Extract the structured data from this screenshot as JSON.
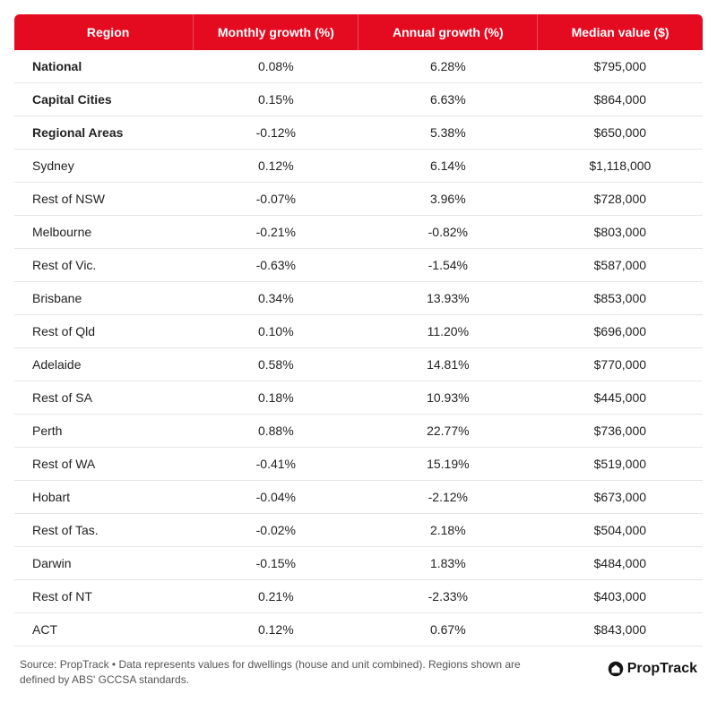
{
  "table": {
    "header_bg": "#e40b21",
    "header_fg": "#ffffff",
    "row_border": "#e6e6e6",
    "columns": [
      "Region",
      "Monthly growth (%)",
      "Annual growth (%)",
      "Median value ($)"
    ],
    "col_widths": [
      "26%",
      "24%",
      "26%",
      "24%"
    ],
    "rows": [
      {
        "bold": true,
        "cells": [
          "National",
          "0.08%",
          "6.28%",
          "$795,000"
        ]
      },
      {
        "bold": true,
        "cells": [
          "Capital Cities",
          "0.15%",
          "6.63%",
          "$864,000"
        ]
      },
      {
        "bold": true,
        "cells": [
          "Regional Areas",
          "-0.12%",
          "5.38%",
          "$650,000"
        ]
      },
      {
        "bold": false,
        "cells": [
          "Sydney",
          "0.12%",
          "6.14%",
          "$1,118,000"
        ]
      },
      {
        "bold": false,
        "cells": [
          "Rest of NSW",
          "-0.07%",
          "3.96%",
          "$728,000"
        ]
      },
      {
        "bold": false,
        "cells": [
          "Melbourne",
          "-0.21%",
          "-0.82%",
          "$803,000"
        ]
      },
      {
        "bold": false,
        "cells": [
          "Rest of Vic.",
          "-0.63%",
          "-1.54%",
          "$587,000"
        ]
      },
      {
        "bold": false,
        "cells": [
          "Brisbane",
          "0.34%",
          "13.93%",
          "$853,000"
        ]
      },
      {
        "bold": false,
        "cells": [
          "Rest of Qld",
          "0.10%",
          "11.20%",
          "$696,000"
        ]
      },
      {
        "bold": false,
        "cells": [
          "Adelaide",
          "0.58%",
          "14.81%",
          "$770,000"
        ]
      },
      {
        "bold": false,
        "cells": [
          "Rest of SA",
          "0.18%",
          "10.93%",
          "$445,000"
        ]
      },
      {
        "bold": false,
        "cells": [
          "Perth",
          "0.88%",
          "22.77%",
          "$736,000"
        ]
      },
      {
        "bold": false,
        "cells": [
          "Rest of WA",
          "-0.41%",
          "15.19%",
          "$519,000"
        ]
      },
      {
        "bold": false,
        "cells": [
          "Hobart",
          "-0.04%",
          "-2.12%",
          "$673,000"
        ]
      },
      {
        "bold": false,
        "cells": [
          "Rest of Tas.",
          "-0.02%",
          "2.18%",
          "$504,000"
        ]
      },
      {
        "bold": false,
        "cells": [
          "Darwin",
          "-0.15%",
          "1.83%",
          "$484,000"
        ]
      },
      {
        "bold": false,
        "cells": [
          "Rest of NT",
          "0.21%",
          "-2.33%",
          "$403,000"
        ]
      },
      {
        "bold": false,
        "cells": [
          "ACT",
          "0.12%",
          "0.67%",
          "$843,000"
        ]
      }
    ]
  },
  "footer": {
    "note": "Source: PropTrack • Data represents values for dwellings (house and unit combined). Regions shown are defined by ABS' GCCSA standards.",
    "brand": "PropTrack"
  }
}
